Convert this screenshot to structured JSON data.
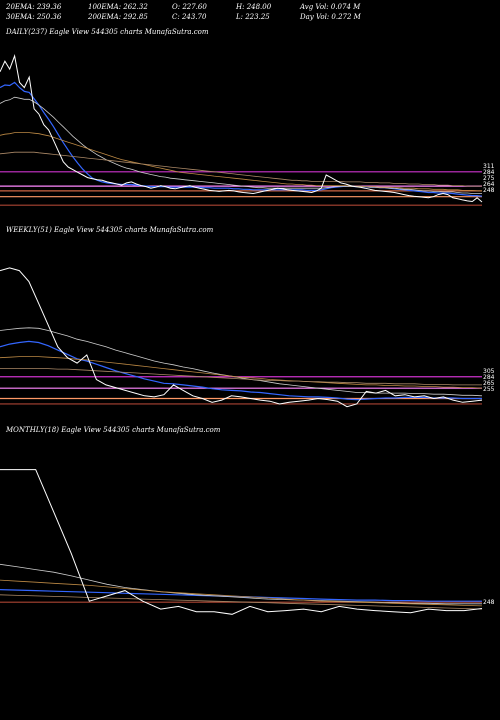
{
  "header": {
    "ema20": "20EMA: 239.36",
    "ema100": "100EMA: 262.32",
    "open": "O: 227.60",
    "high": "H: 248.00",
    "avgvol": "Avg Vol: 0.074  M",
    "ema30": "30EMA: 250.36",
    "ema200": "200EMA: 292.85",
    "close": "C: 243.70",
    "low": "L: 223.25",
    "dayvol": "Day Vol: 0.272  M"
  },
  "chart_data": [
    {
      "type": "line",
      "title": "DAILY(237) Eagle   View  544305 charts MunafaSutra.com",
      "level_labels": [
        "311",
        "284",
        "275",
        "264",
        "248"
      ],
      "series": [
        {
          "name": "price",
          "color": "#ffffff",
          "values": [
            500,
            520,
            505,
            530,
            480,
            470,
            490,
            430,
            420,
            400,
            390,
            370,
            350,
            330,
            320,
            315,
            310,
            305,
            300,
            298,
            296,
            295,
            292,
            290,
            288,
            286,
            290,
            292,
            288,
            285,
            283,
            280,
            282,
            285,
            283,
            280,
            279,
            281,
            283,
            285,
            282,
            280,
            278,
            276,
            275,
            274,
            275,
            276,
            275,
            273,
            272,
            271,
            270,
            272,
            274,
            276,
            278,
            280,
            279,
            277,
            276,
            275,
            274,
            273,
            272,
            275,
            280,
            305,
            300,
            295,
            290,
            288,
            285,
            283,
            282,
            280,
            278,
            276,
            275,
            274,
            273,
            272,
            270,
            268,
            266,
            265,
            264,
            263,
            262,
            264,
            268,
            270,
            268,
            262,
            260,
            258,
            256,
            255,
            262,
            254
          ]
        },
        {
          "name": "20EMA",
          "color": "#3366ff",
          "values": [
            470,
            475,
            474,
            480,
            470,
            463,
            461,
            449,
            437,
            423,
            410,
            396,
            381,
            366,
            352,
            339,
            327,
            316,
            307,
            299,
            295,
            292,
            290,
            289,
            288,
            287,
            287,
            287,
            286,
            285,
            284,
            283,
            283,
            283,
            283,
            282,
            282,
            282,
            282,
            282,
            282,
            282,
            281,
            281,
            280,
            280,
            280,
            280,
            279,
            279,
            278,
            278,
            277,
            277,
            277,
            277,
            277,
            277,
            277,
            277,
            277,
            277,
            277,
            276,
            276,
            276,
            277,
            279,
            281,
            282,
            283,
            284,
            284,
            283,
            283,
            283,
            282,
            282,
            281,
            281,
            280,
            279,
            278,
            277,
            276,
            275,
            274,
            273,
            272,
            272,
            271,
            271,
            271,
            270,
            269,
            268,
            267,
            266,
            266,
            265
          ]
        },
        {
          "name": "30EMA",
          "color": "#cccccc",
          "values": [
            440,
            445,
            447,
            452,
            450,
            448,
            448,
            443,
            437,
            430,
            422,
            414,
            405,
            396,
            387,
            378,
            370,
            362,
            355,
            349,
            343,
            338,
            333,
            329,
            325,
            321,
            318,
            316,
            313,
            310,
            308,
            306,
            304,
            302,
            301,
            299,
            298,
            297,
            296,
            295,
            294,
            293,
            292,
            291,
            290,
            289,
            288,
            287,
            286,
            285,
            284,
            283,
            282,
            281,
            281,
            280,
            280,
            280,
            280,
            280,
            280,
            280,
            280,
            280,
            280,
            280,
            280,
            281,
            282,
            283,
            283,
            283,
            283,
            283,
            283,
            283,
            282,
            282,
            281,
            281,
            280,
            280,
            279,
            278,
            278,
            277,
            276,
            275,
            275,
            274,
            274,
            273,
            273,
            273,
            272,
            271,
            271,
            270,
            270,
            270
          ]
        },
        {
          "name": "100EMA",
          "color": "#bb8844",
          "values": [
            380,
            382,
            383,
            385,
            385,
            385,
            385,
            384,
            383,
            381,
            379,
            376,
            373,
            370,
            367,
            364,
            361,
            358,
            355,
            352,
            349,
            346,
            343,
            340,
            337,
            334,
            332,
            330,
            328,
            326,
            324,
            322,
            320,
            318,
            316,
            314,
            312,
            310,
            309,
            308,
            307,
            306,
            305,
            304,
            303,
            302,
            301,
            300,
            299,
            298,
            297,
            296,
            295,
            294,
            293,
            292,
            291,
            290,
            289,
            288,
            288,
            287,
            287,
            286,
            286,
            285,
            285,
            285,
            285,
            285,
            285,
            285,
            284,
            284,
            284,
            283,
            283,
            283,
            282,
            282,
            282,
            281,
            281,
            280,
            280,
            280,
            279,
            279,
            279,
            278,
            278,
            278,
            277,
            277,
            277,
            276,
            276,
            276,
            275,
            275
          ]
        },
        {
          "name": "200EMA",
          "color": "#aa8866",
          "values": [
            345,
            346,
            347,
            348,
            348,
            348,
            348,
            348,
            347,
            346,
            345,
            344,
            343,
            342,
            341,
            340,
            339,
            338,
            337,
            336,
            335,
            334,
            333,
            332,
            331,
            330,
            329,
            328,
            327,
            326,
            325,
            324,
            323,
            322,
            321,
            320,
            319,
            318,
            317,
            316,
            315,
            314,
            313,
            312,
            311,
            310,
            309,
            308,
            307,
            306,
            305,
            304,
            303,
            302,
            301,
            300,
            299,
            298,
            297,
            296,
            295,
            295,
            294,
            294,
            293,
            293,
            293,
            293,
            293,
            293,
            293,
            292,
            292,
            292,
            292,
            291,
            291,
            291,
            290,
            290,
            290,
            289,
            289,
            289,
            288,
            288,
            288,
            287,
            287,
            287,
            286,
            286,
            286,
            285,
            285,
            285,
            284,
            284,
            284,
            284
          ]
        }
      ],
      "levels": [
        {
          "value": 311,
          "color": "#cc33cc"
        },
        {
          "value": 284,
          "color": "#ff88ff"
        },
        {
          "value": 275,
          "color": "#cc6644"
        },
        {
          "value": 264,
          "color": "#ff9966"
        },
        {
          "value": 248,
          "color": "#aa4433"
        }
      ],
      "ylim": [
        220,
        560
      ]
    },
    {
      "type": "line",
      "title": "WEEKLY(51) Eagle   View  544305 charts MunafaSutra.com",
      "level_labels": [
        "305",
        "284",
        "265",
        "255"
      ],
      "series": [
        {
          "name": "price",
          "color": "#ffffff",
          "values": [
            500,
            505,
            500,
            480,
            440,
            400,
            360,
            340,
            330,
            345,
            300,
            290,
            285,
            280,
            275,
            270,
            268,
            272,
            290,
            280,
            270,
            265,
            258,
            262,
            270,
            268,
            265,
            262,
            260,
            255,
            258,
            260,
            262,
            265,
            263,
            260,
            250,
            255,
            278,
            275,
            280,
            270,
            272,
            268,
            270,
            265,
            268,
            262,
            258,
            260,
            262
          ]
        },
        {
          "name": "20EMA",
          "color": "#3366ff",
          "values": [
            360,
            365,
            368,
            370,
            368,
            362,
            354,
            346,
            338,
            334,
            328,
            322,
            316,
            311,
            306,
            301,
            297,
            293,
            292,
            290,
            288,
            286,
            283,
            281,
            280,
            279,
            277,
            276,
            274,
            272,
            270,
            269,
            268,
            268,
            267,
            266,
            264,
            263,
            264,
            265,
            266,
            266,
            267,
            267,
            267,
            266,
            266,
            266,
            265,
            265,
            265
          ]
        },
        {
          "name": "30EMA",
          "color": "#cccccc",
          "values": [
            390,
            392,
            394,
            395,
            394,
            390,
            385,
            380,
            374,
            370,
            365,
            360,
            354,
            349,
            344,
            339,
            334,
            330,
            327,
            323,
            320,
            316,
            312,
            309,
            306,
            303,
            300,
            298,
            295,
            292,
            290,
            288,
            286,
            284,
            282,
            280,
            278,
            276,
            276,
            275,
            275,
            275,
            275,
            274,
            274,
            273,
            273,
            272,
            271,
            271,
            270
          ]
        },
        {
          "name": "100EMA",
          "color": "#bb8844",
          "values": [
            340,
            341,
            342,
            342,
            342,
            341,
            340,
            339,
            337,
            336,
            334,
            332,
            330,
            328,
            326,
            324,
            322,
            320,
            318,
            316,
            314,
            312,
            310,
            308,
            306,
            304,
            303,
            302,
            300,
            299,
            298,
            297,
            296,
            295,
            294,
            293,
            292,
            291,
            290,
            290,
            289,
            289,
            288,
            288,
            287,
            287,
            286,
            286,
            285,
            285,
            284
          ]
        },
        {
          "name": "200EMA",
          "color": "#aa8866",
          "values": [
            320,
            320,
            320,
            320,
            320,
            320,
            319,
            319,
            318,
            317,
            316,
            315,
            314,
            313,
            312,
            311,
            310,
            309,
            308,
            307,
            306,
            305,
            304,
            303,
            302,
            301,
            300,
            299,
            298,
            298,
            297,
            297,
            296,
            296,
            295,
            295,
            294,
            294,
            293,
            293,
            293,
            292,
            292,
            292,
            291,
            291,
            291,
            290,
            290,
            290,
            290
          ]
        }
      ],
      "levels": [
        {
          "value": 305,
          "color": "#cc33cc"
        },
        {
          "value": 284,
          "color": "#ff88ff"
        },
        {
          "value": 265,
          "color": "#ff9966"
        },
        {
          "value": 255,
          "color": "#aa4433"
        }
      ],
      "ylim": [
        220,
        560
      ]
    },
    {
      "type": "line",
      "title": "MONTHLY(18) Eagle   View  544305 charts MunafaSutra.com",
      "level_labels": [
        "248"
      ],
      "series": [
        {
          "name": "price",
          "color": "#ffffff",
          "values": [
            500,
            500,
            500,
            420,
            340,
            250,
            260,
            270,
            250,
            235,
            240,
            230,
            230,
            225,
            240,
            230,
            232,
            235,
            230,
            240,
            235,
            232,
            230,
            228,
            235,
            232,
            232,
            236
          ]
        },
        {
          "name": "20EMA",
          "color": "#3366ff",
          "values": [
            272,
            271,
            270,
            269,
            268,
            267,
            266,
            265,
            264,
            263,
            262,
            261,
            260,
            259,
            258,
            257,
            256,
            255,
            254,
            253,
            252,
            252,
            251,
            251,
            250,
            250,
            250,
            250
          ]
        },
        {
          "name": "30EMA",
          "color": "#cccccc",
          "values": [
            320,
            315,
            310,
            305,
            298,
            290,
            282,
            276,
            272,
            268,
            265,
            262,
            260,
            258,
            256,
            254,
            253,
            252,
            251,
            250,
            249,
            248,
            247,
            246,
            246,
            245,
            245,
            245
          ]
        },
        {
          "name": "100EMA",
          "color": "#bb8844",
          "values": [
            290,
            288,
            286,
            284,
            282,
            280,
            277,
            274,
            271,
            268,
            266,
            264,
            262,
            260,
            258,
            256,
            254,
            252,
            250,
            249,
            248,
            247,
            246,
            245,
            244,
            243,
            242,
            241
          ]
        },
        {
          "name": "200EMA",
          "color": "#aa8866",
          "values": [
            262,
            261,
            260,
            259,
            258,
            257,
            256,
            255,
            254,
            253,
            252,
            251,
            250,
            249,
            248,
            247,
            246,
            245,
            244,
            243,
            242,
            241,
            240,
            239,
            238,
            237,
            236,
            235
          ]
        }
      ],
      "levels": [
        {
          "value": 248,
          "color": "#aa4433"
        }
      ],
      "ylim": [
        180,
        560
      ]
    }
  ]
}
